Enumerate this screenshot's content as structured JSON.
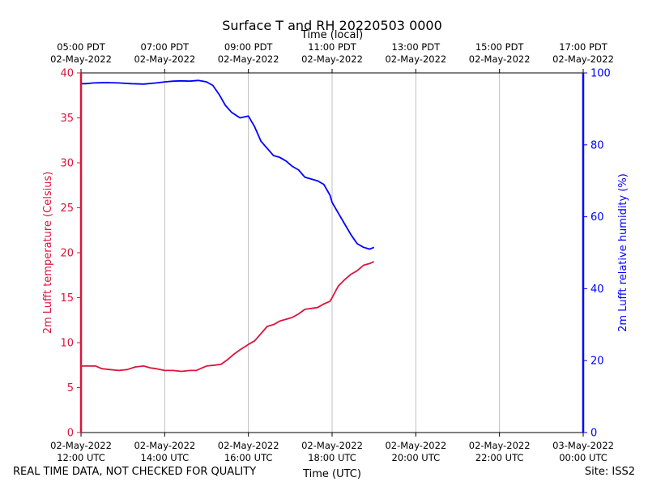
{
  "chart_data": {
    "type": "line",
    "title": "Surface T and RH 20220503 0000",
    "top_axis_label": "Time (local)",
    "xlabel": "Time (UTC)",
    "ylabel_left": "2m Lufft temperature (Celsius)",
    "ylabel_right": "2m Lufft relative humidity (%)",
    "xlim_hours_utc": [
      12,
      24
    ],
    "ylim_left": [
      0,
      40
    ],
    "ylim_right": [
      0,
      100
    ],
    "grid": "vertical",
    "x_ticks_hours": [
      12,
      14,
      16,
      18,
      20,
      22,
      24
    ],
    "bottom_tick_labels": [
      [
        "02-May-2022",
        "12:00 UTC"
      ],
      [
        "02-May-2022",
        "14:00 UTC"
      ],
      [
        "02-May-2022",
        "16:00 UTC"
      ],
      [
        "02-May-2022",
        "18:00 UTC"
      ],
      [
        "02-May-2022",
        "20:00 UTC"
      ],
      [
        "02-May-2022",
        "22:00 UTC"
      ],
      [
        "03-May-2022",
        "00:00 UTC"
      ]
    ],
    "top_tick_labels": [
      [
        "05:00 PDT",
        "02-May-2022"
      ],
      [
        "07:00 PDT",
        "02-May-2022"
      ],
      [
        "09:00 PDT",
        "02-May-2022"
      ],
      [
        "11:00 PDT",
        "02-May-2022"
      ],
      [
        "13:00 PDT",
        "02-May-2022"
      ],
      [
        "15:00 PDT",
        "02-May-2022"
      ],
      [
        "17:00 PDT",
        "02-May-2022"
      ]
    ],
    "left_ticks": [
      0,
      5,
      10,
      15,
      20,
      25,
      30,
      35,
      40
    ],
    "right_ticks": [
      0,
      20,
      40,
      60,
      80,
      100
    ],
    "series": [
      {
        "name": "2m Lufft temperature",
        "axis": "left",
        "color": "#dc143c",
        "x_hours": [
          12.0,
          12.1,
          12.2,
          12.35,
          12.5,
          12.7,
          12.9,
          13.1,
          13.3,
          13.5,
          13.65,
          13.8,
          14.0,
          14.2,
          14.4,
          14.6,
          14.75,
          14.9,
          15.0,
          15.2,
          15.35,
          15.5,
          15.65,
          15.8,
          16.0,
          16.15,
          16.3,
          16.45,
          16.6,
          16.75,
          16.9,
          17.05,
          17.2,
          17.35,
          17.5,
          17.65,
          17.8,
          17.95,
          18.0,
          18.15,
          18.3,
          18.45,
          18.6,
          18.75,
          18.9,
          19.0
        ],
        "values": [
          7.4,
          7.4,
          7.4,
          7.4,
          7.1,
          7.0,
          6.9,
          7.0,
          7.3,
          7.4,
          7.2,
          7.1,
          6.9,
          6.9,
          6.8,
          6.9,
          6.9,
          7.2,
          7.4,
          7.5,
          7.6,
          8.1,
          8.7,
          9.2,
          9.8,
          10.2,
          11.0,
          11.8,
          12.0,
          12.4,
          12.6,
          12.8,
          13.2,
          13.7,
          13.8,
          13.9,
          14.3,
          14.6,
          15.0,
          16.3,
          17.0,
          17.6,
          18.0,
          18.6,
          18.8,
          19.0
        ]
      },
      {
        "name": "2m Lufft relative humidity",
        "axis": "right",
        "color": "#0000ff",
        "x_hours": [
          12.0,
          12.1,
          12.3,
          12.6,
          12.9,
          13.2,
          13.5,
          13.8,
          14.0,
          14.2,
          14.4,
          14.6,
          14.8,
          15.0,
          15.15,
          15.3,
          15.45,
          15.6,
          15.8,
          16.0,
          16.15,
          16.3,
          16.45,
          16.6,
          16.75,
          16.9,
          17.05,
          17.2,
          17.35,
          17.5,
          17.65,
          17.8,
          17.95,
          18.0,
          18.15,
          18.3,
          18.45,
          18.6,
          18.75,
          18.9,
          19.0
        ],
        "values": [
          97.0,
          97.0,
          97.2,
          97.3,
          97.2,
          97.0,
          96.9,
          97.2,
          97.5,
          97.7,
          97.8,
          97.7,
          97.9,
          97.5,
          96.5,
          94.0,
          91.0,
          89.0,
          87.5,
          88.0,
          85.0,
          81.0,
          79.0,
          77.0,
          76.5,
          75.5,
          74.0,
          73.0,
          71.0,
          70.5,
          70.0,
          69.0,
          66.0,
          64.0,
          61.0,
          58.0,
          55.0,
          52.5,
          51.5,
          51.0,
          51.5
        ]
      }
    ]
  },
  "footer": {
    "note": "REAL TIME DATA, NOT CHECKED FOR QUALITY",
    "site": "Site: ISS2"
  }
}
